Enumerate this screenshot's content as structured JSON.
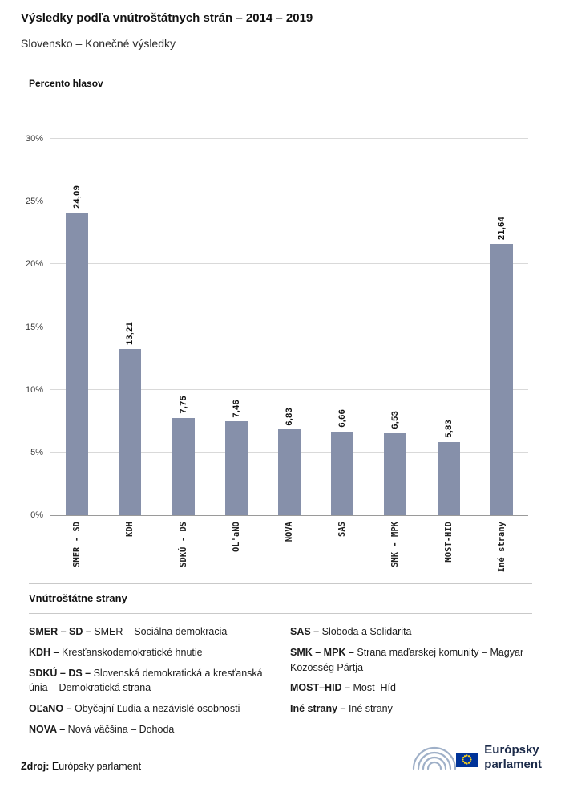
{
  "header": {
    "title": "Výsledky podľa vnútroštátnych strán – 2014 – 2019",
    "subtitle": "Slovensko – Konečné výsledky"
  },
  "chart_data": {
    "type": "bar",
    "title": "Percento hlasov",
    "categories": [
      "SMER - SD",
      "KDH",
      "SDKÚ - DS",
      "OL'aNO",
      "NOVA",
      "SAS",
      "SMK - MPK",
      "MOST-HID",
      "Iné strany"
    ],
    "values": [
      24.09,
      13.21,
      7.75,
      7.46,
      6.83,
      6.66,
      6.53,
      5.83,
      21.64
    ],
    "value_labels": [
      "24,09",
      "13,21",
      "7,75",
      "7,46",
      "6,83",
      "6,66",
      "6,53",
      "5,83",
      "21,64"
    ],
    "xlabel": "",
    "ylabel": "Percento hlasov",
    "ylim": [
      0,
      30
    ],
    "yticks": [
      {
        "label": "0%",
        "value": 0
      },
      {
        "label": "5%",
        "value": 5
      },
      {
        "label": "10%",
        "value": 10
      },
      {
        "label": "15%",
        "value": 15
      },
      {
        "label": "20%",
        "value": 20
      },
      {
        "label": "25%",
        "value": 25
      },
      {
        "label": "30%",
        "value": 30
      }
    ],
    "grid": true,
    "bar_color": "#8690aa",
    "legend_position": "below"
  },
  "legend": {
    "title": "Vnútroštátne strany",
    "columns": [
      [
        {
          "term": "SMER – SD –",
          "desc": "SMER – Sociálna demokracia"
        },
        {
          "term": "KDH –",
          "desc": "Kresťanskodemokratické hnutie"
        },
        {
          "term": "SDKÚ – DS –",
          "desc": "Slovenská demokratická a kresťanská únia – Demokratická strana"
        },
        {
          "term": "OĽaNO –",
          "desc": "Obyčajní Ľudia a nezávislé osobnosti"
        },
        {
          "term": "NOVA –",
          "desc": "Nová väčšina – Dohoda"
        }
      ],
      [
        {
          "term": "SAS –",
          "desc": "Sloboda a Solidarita"
        },
        {
          "term": "SMK – MPK –",
          "desc": "Strana maďarskej komunity – Magyar Közösség Pártja"
        },
        {
          "term": "MOST–HID –",
          "desc": "Most–Híd"
        },
        {
          "term": "Iné strany –",
          "desc": "Iné strany"
        }
      ]
    ]
  },
  "footer": {
    "source_label": "Zdroj:",
    "source_text": "Európsky parlament"
  },
  "logo": {
    "hemicycle_icon": "ep-hemicycle-icon",
    "flag_icon": "eu-flag-icon",
    "line1": "Európsky",
    "line2": "parlament",
    "flag_blue": "#003399",
    "star_yellow": "#ffd617"
  }
}
